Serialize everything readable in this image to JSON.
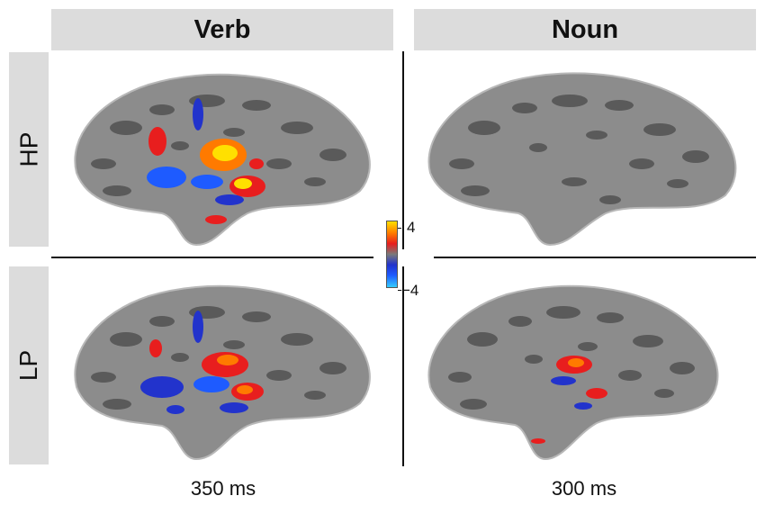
{
  "columns": [
    "Verb",
    "Noun"
  ],
  "rows": [
    "HP",
    "LP"
  ],
  "times": [
    "350 ms",
    "300 ms"
  ],
  "colorbar": {
    "max": "4",
    "min": "−4",
    "colors": [
      "#ffe000",
      "#ff7a00",
      "#e81e1e",
      "#7a7a7a",
      "#2233cc",
      "#1e5bff",
      "#33ccff"
    ]
  },
  "brain_colors": {
    "gyri": "#8c8c8c",
    "sulci": "#5a5a5a",
    "outline": "#b8b8b8"
  }
}
